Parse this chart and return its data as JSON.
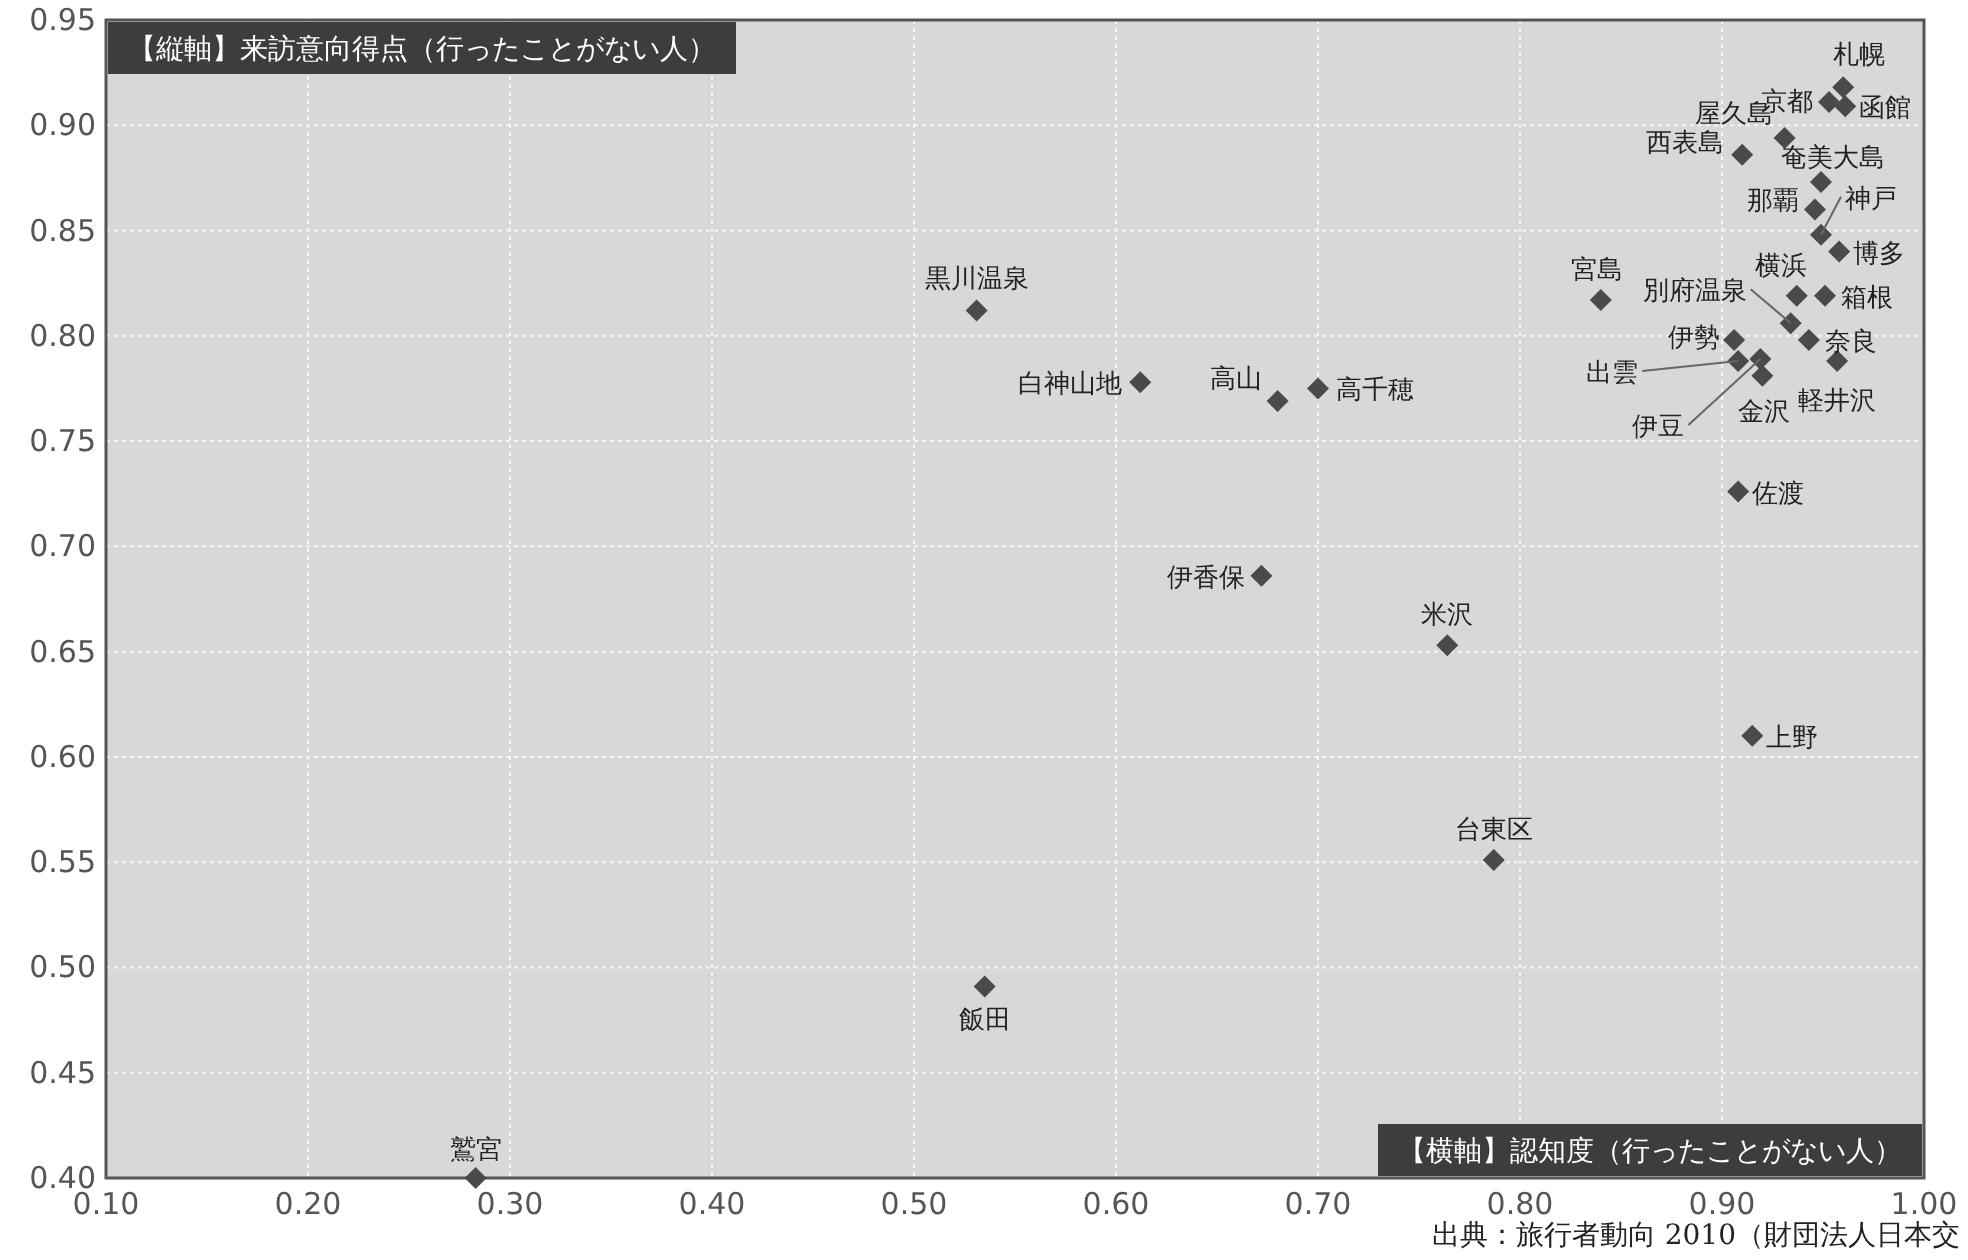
{
  "chart_data": {
    "type": "scatter",
    "ylabel": "【縦軸】来訪意向得点（行ったことがない人）",
    "xlabel": "【横軸】認知度（行ったことがない人）",
    "x": [
      0.96,
      0.953,
      0.961,
      0.931,
      0.91,
      0.949,
      0.946,
      0.949,
      0.958,
      0.84,
      0.937,
      0.951,
      0.934,
      0.943,
      0.906,
      0.908,
      0.919,
      0.92,
      0.957,
      0.908,
      0.915,
      0.531,
      0.612,
      0.68,
      0.7,
      0.672,
      0.764,
      0.787,
      0.535,
      0.283
    ],
    "values": [
      0.918,
      0.911,
      0.909,
      0.894,
      0.886,
      0.873,
      0.86,
      0.848,
      0.84,
      0.817,
      0.819,
      0.819,
      0.806,
      0.798,
      0.798,
      0.788,
      0.789,
      0.781,
      0.788,
      0.726,
      0.61,
      0.812,
      0.778,
      0.769,
      0.775,
      0.686,
      0.653,
      0.551,
      0.491,
      0.4
    ],
    "color": "#4a4a4a",
    "marker": "diamond",
    "grid": true,
    "xlim": [
      0.1,
      1.0
    ],
    "ylim": [
      0.4,
      0.95
    ],
    "xticks": [
      {
        "value": 0.1,
        "label": "0.10"
      },
      {
        "value": 0.2,
        "label": "0.20"
      },
      {
        "value": 0.3,
        "label": "0.30"
      },
      {
        "value": 0.4,
        "label": "0.40"
      },
      {
        "value": 0.5,
        "label": "0.50"
      },
      {
        "value": 0.6,
        "label": "0.60"
      },
      {
        "value": 0.7,
        "label": "0.70"
      },
      {
        "value": 0.8,
        "label": "0.80"
      },
      {
        "value": 0.9,
        "label": "0.90"
      },
      {
        "value": 1.0,
        "label": "1.00"
      }
    ],
    "yticks": [
      {
        "value": 0.4,
        "label": "0.40"
      },
      {
        "value": 0.45,
        "label": "0.45"
      },
      {
        "value": 0.5,
        "label": "0.50"
      },
      {
        "value": 0.55,
        "label": "0.55"
      },
      {
        "value": 0.6,
        "label": "0.60"
      },
      {
        "value": 0.65,
        "label": "0.65"
      },
      {
        "value": 0.7,
        "label": "0.70"
      },
      {
        "value": 0.75,
        "label": "0.75"
      },
      {
        "value": 0.8,
        "label": "0.80"
      },
      {
        "value": 0.85,
        "label": "0.85"
      },
      {
        "value": 0.9,
        "label": "0.90"
      },
      {
        "value": 0.95,
        "label": "0.95"
      }
    ],
    "annotations": [
      {
        "text": "札幌",
        "x": 0.96,
        "y": 0.918
      },
      {
        "text": "京都",
        "x": 0.953,
        "y": 0.911
      },
      {
        "text": "函館",
        "x": 0.961,
        "y": 0.909
      },
      {
        "text": "屋久島",
        "x": 0.931,
        "y": 0.894
      },
      {
        "text": "西表島",
        "x": 0.91,
        "y": 0.886
      },
      {
        "text": "奄美大島",
        "x": 0.949,
        "y": 0.873
      },
      {
        "text": "那覇",
        "x": 0.946,
        "y": 0.86
      },
      {
        "text": "神戸",
        "x": 0.949,
        "y": 0.848
      },
      {
        "text": "博多",
        "x": 0.958,
        "y": 0.84
      },
      {
        "text": "宮島",
        "x": 0.84,
        "y": 0.817
      },
      {
        "text": "横浜",
        "x": 0.937,
        "y": 0.819
      },
      {
        "text": "箱根",
        "x": 0.951,
        "y": 0.819
      },
      {
        "text": "別府温泉",
        "x": 0.934,
        "y": 0.806
      },
      {
        "text": "奈良",
        "x": 0.943,
        "y": 0.798
      },
      {
        "text": "伊勢",
        "x": 0.906,
        "y": 0.798
      },
      {
        "text": "出雲",
        "x": 0.908,
        "y": 0.788
      },
      {
        "text": "伊豆",
        "x": 0.919,
        "y": 0.789
      },
      {
        "text": "金沢",
        "x": 0.92,
        "y": 0.781
      },
      {
        "text": "軽井沢",
        "x": 0.957,
        "y": 0.788
      },
      {
        "text": "佐渡",
        "x": 0.908,
        "y": 0.726
      },
      {
        "text": "上野",
        "x": 0.915,
        "y": 0.61
      },
      {
        "text": "黒川温泉",
        "x": 0.531,
        "y": 0.812
      },
      {
        "text": "白神山地",
        "x": 0.612,
        "y": 0.778
      },
      {
        "text": "高山",
        "x": 0.68,
        "y": 0.769
      },
      {
        "text": "高千穂",
        "x": 0.7,
        "y": 0.775
      },
      {
        "text": "伊香保",
        "x": 0.672,
        "y": 0.686
      },
      {
        "text": "米沢",
        "x": 0.764,
        "y": 0.653
      },
      {
        "text": "台東区",
        "x": 0.787,
        "y": 0.551
      },
      {
        "text": "飯田",
        "x": 0.535,
        "y": 0.491
      },
      {
        "text": "鷲宮",
        "x": 0.283,
        "y": 0.4
      },
      "出典：旅行者動向 2010（財団法人日本交"
    ]
  }
}
